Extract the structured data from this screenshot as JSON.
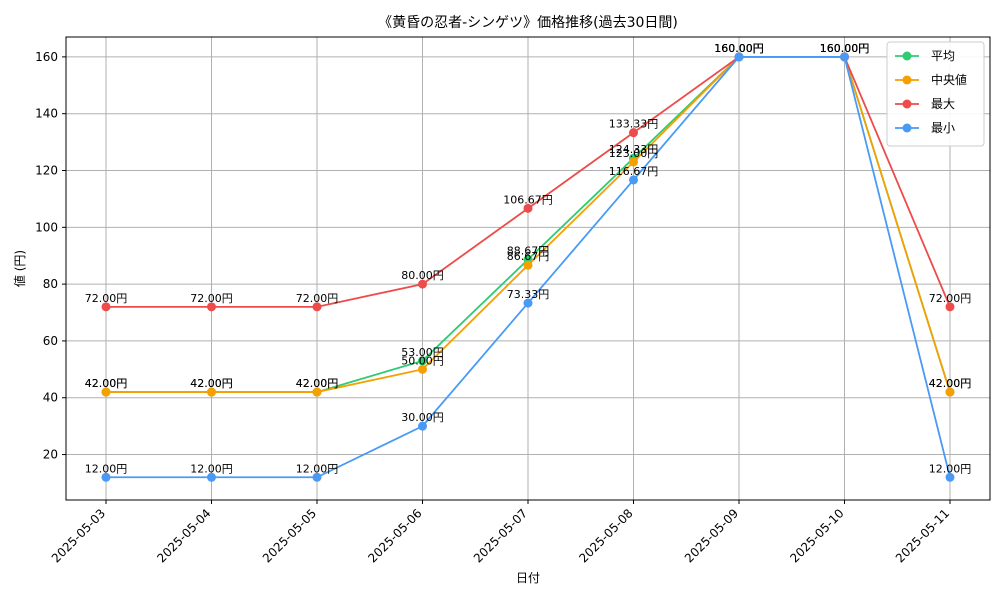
{
  "chart_data": {
    "type": "line",
    "title": "《黄昏の忍者-シンゲツ》価格推移(過去30日間)",
    "xlabel": "日付",
    "ylabel": "値 (円)",
    "categories": [
      "2025-05-03",
      "2025-05-04",
      "2025-05-05",
      "2025-05-06",
      "2025-05-07",
      "2025-05-08",
      "2025-05-09",
      "2025-05-10",
      "2025-05-11"
    ],
    "ylim": [
      4,
      167
    ],
    "yticks": [
      20,
      40,
      60,
      80,
      100,
      120,
      140,
      160
    ],
    "grid": true,
    "legend_position": "top-right",
    "value_suffix": "円",
    "series": [
      {
        "name": "平均",
        "color": "#2ecc71",
        "values": [
          42,
          42,
          42,
          53,
          88.67,
          124.33,
          160,
          160,
          42
        ],
        "labels": [
          "42.00円",
          "42.00円",
          "42.00円",
          "53.00円",
          "88.67円",
          "124.33円",
          "160.00円",
          "160.00円",
          "42.00円"
        ]
      },
      {
        "name": "中央値",
        "color": "#f5a000",
        "values": [
          42,
          42,
          42,
          50,
          86.67,
          123.0,
          160,
          160,
          42
        ],
        "labels": [
          "42.00円",
          "42.00円",
          "42.00円",
          "50.00円",
          "86.67円",
          "123.00円",
          "160.00円",
          "160.00円",
          "42.00円"
        ]
      },
      {
        "name": "最大",
        "color": "#ee4b4b",
        "values": [
          72,
          72,
          72,
          80,
          106.67,
          133.33,
          160,
          160,
          72
        ],
        "labels": [
          "72.00円",
          "72.00円",
          "72.00円",
          "80.00円",
          "106.67円",
          "133.33円",
          "160.00円",
          "160.00円",
          "72.00円"
        ]
      },
      {
        "name": "最小",
        "color": "#4a9af5",
        "values": [
          12,
          12,
          12,
          30,
          73.33,
          116.67,
          160,
          160,
          12
        ],
        "labels": [
          "12.00円",
          "12.00円",
          "12.00円",
          "30.00円",
          "73.33円",
          "116.67円",
          "160.00円",
          "160.00円",
          "12.00円"
        ]
      }
    ]
  }
}
